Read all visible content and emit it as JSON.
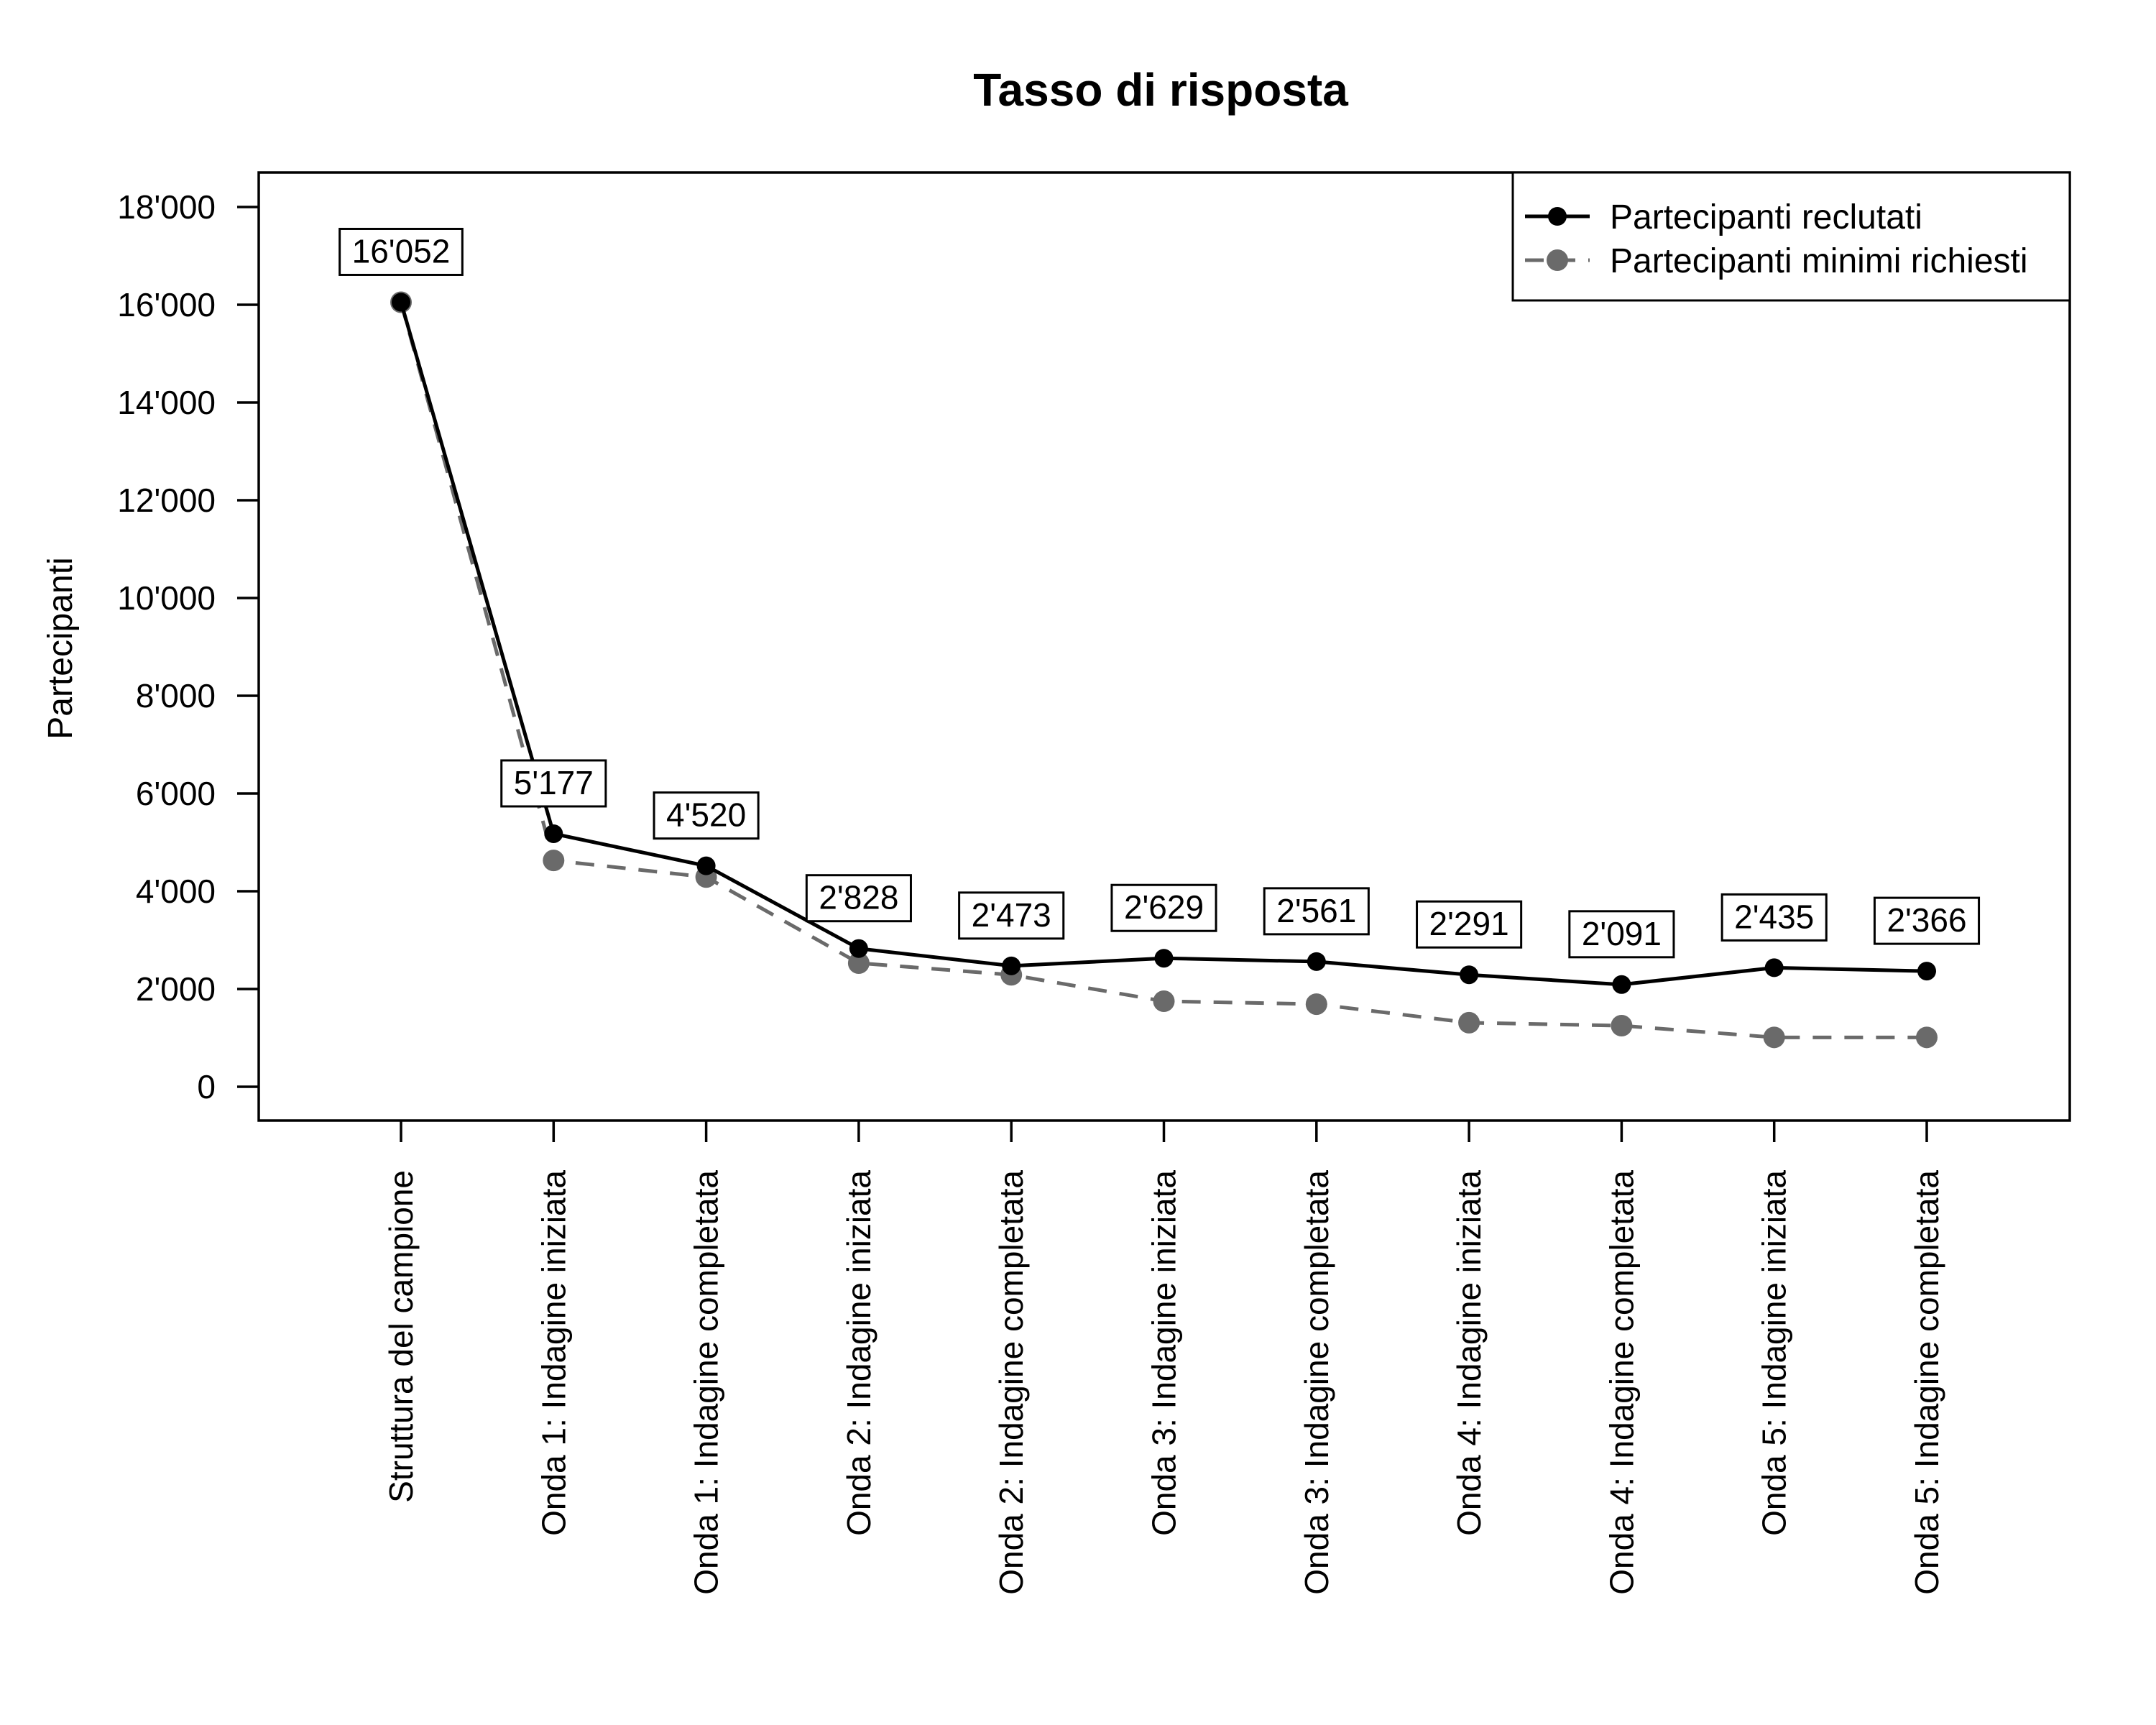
{
  "title": "Tasso di risposta",
  "chart_data": {
    "type": "line",
    "title": "Tasso di risposta",
    "xlabel": "",
    "ylabel": "Partecipanti",
    "categories": [
      "Struttura del campione",
      "Onda 1: Indagine iniziata",
      "Onda 1: Indagine completata",
      "Onda 2: Indagine iniziata",
      "Onda 2: Indagine completata",
      "Onda 3: Indagine iniziata",
      "Onda 3: Indagine completata",
      "Onda 4: Indagine iniziata",
      "Onda 4: Indagine completata",
      "Onda 5: Indagine iniziata",
      "Onda 5: Indagine completata"
    ],
    "series": [
      {
        "name": "Partecipanti reclutati",
        "color": "#000000",
        "line_style": "solid",
        "marker": "filled-circle",
        "values": [
          16052,
          5177,
          4520,
          2828,
          2473,
          2629,
          2561,
          2291,
          2091,
          2435,
          2366
        ],
        "data_labels": [
          "16'052",
          "5'177",
          "4'520",
          "2'828",
          "2'473",
          "2'629",
          "2'561",
          "2'291",
          "2'091",
          "2'435",
          "2'366"
        ]
      },
      {
        "name": "Partecipanti minimi richiesti",
        "color": "#6a6a6a",
        "line_style": "dashed",
        "marker": "filled-circle",
        "values_estimated_from_plot": true,
        "values": [
          16052,
          4630,
          4290,
          2530,
          2290,
          1750,
          1690,
          1310,
          1250,
          1010,
          1010
        ]
      }
    ],
    "ylim": [
      0,
      18000
    ],
    "y_ticks": [
      0,
      2000,
      4000,
      6000,
      8000,
      10000,
      12000,
      14000,
      16000,
      18000
    ],
    "y_tick_labels": [
      "0",
      "2'000",
      "4'000",
      "6'000",
      "8'000",
      "10'000",
      "12'000",
      "14'000",
      "16'000",
      "18'000"
    ],
    "legend_position": "top-right",
    "grid": false
  },
  "legend": {
    "items": [
      {
        "label": "Partecipanti reclutati",
        "color": "#000000",
        "style": "solid"
      },
      {
        "label": "Partecipanti minimi richiesti",
        "color": "#6a6a6a",
        "style": "dashed"
      }
    ]
  }
}
